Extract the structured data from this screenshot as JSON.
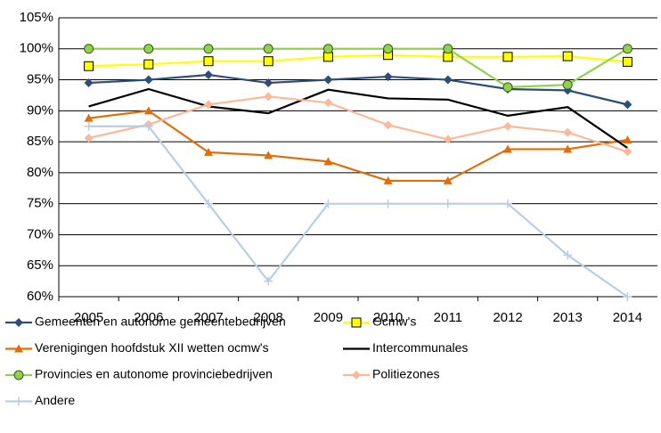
{
  "chart_data": {
    "type": "line",
    "categories": [
      "2005",
      "2006",
      "2007",
      "2008",
      "2009",
      "2010",
      "2011",
      "2012",
      "2013",
      "2014"
    ],
    "ylim": [
      60,
      105
    ],
    "yticks": [
      {
        "value": 60,
        "label": "60%"
      },
      {
        "value": 65,
        "label": "65%"
      },
      {
        "value": 70,
        "label": "70%"
      },
      {
        "value": 75,
        "label": "75%"
      },
      {
        "value": 80,
        "label": "80%"
      },
      {
        "value": 85,
        "label": "85%"
      },
      {
        "value": 90,
        "label": "90%"
      },
      {
        "value": 95,
        "label": "95%"
      },
      {
        "value": 100,
        "label": "100%"
      },
      {
        "value": 105,
        "label": "105%"
      }
    ],
    "grid": true,
    "legend": "bottom",
    "series": [
      {
        "name": "Gemeenten en autonome gemeentebedrijven",
        "color": "#2e4d7b",
        "marker": "diamond",
        "values": [
          94.5,
          95,
          95.8,
          94.5,
          95,
          95.5,
          95,
          93.5,
          93.3,
          91
        ]
      },
      {
        "name": "Ocmw's",
        "color": "#ffff00",
        "marker": "square",
        "values": [
          97.2,
          97.5,
          98,
          98,
          98.7,
          99,
          98.7,
          98.7,
          98.8,
          97.9
        ]
      },
      {
        "name": "Verenigingen hoofdstuk XII wetten ocmw's",
        "color": "#e36c0a",
        "marker": "triangle",
        "values": [
          88.8,
          90,
          83.3,
          82.8,
          81.8,
          78.7,
          78.7,
          83.8,
          83.8,
          85.3
        ]
      },
      {
        "name": "Intercommunales",
        "color": "#000000",
        "marker": "none",
        "values": [
          90.7,
          93.5,
          90.7,
          89.6,
          93.4,
          92,
          91.8,
          89.2,
          90.6,
          84
        ]
      },
      {
        "name": "Provincies en autonome provinciebedrijven",
        "color": "#92d050",
        "marker": "circle",
        "values": [
          100,
          100,
          100,
          100,
          100,
          100,
          100,
          93.8,
          94.2,
          100
        ]
      },
      {
        "name": "Politiezones",
        "color": "#fbb999",
        "marker": "diamond",
        "values": [
          85.6,
          87.8,
          91,
          92.3,
          91.3,
          87.7,
          85.4,
          87.5,
          86.5,
          83.4
        ]
      },
      {
        "name": "Andere",
        "color": "#b9cde5",
        "marker": "plus",
        "values": [
          87.5,
          87.5,
          75,
          62.5,
          75,
          75,
          75,
          75,
          66.7,
          60
        ]
      }
    ]
  }
}
